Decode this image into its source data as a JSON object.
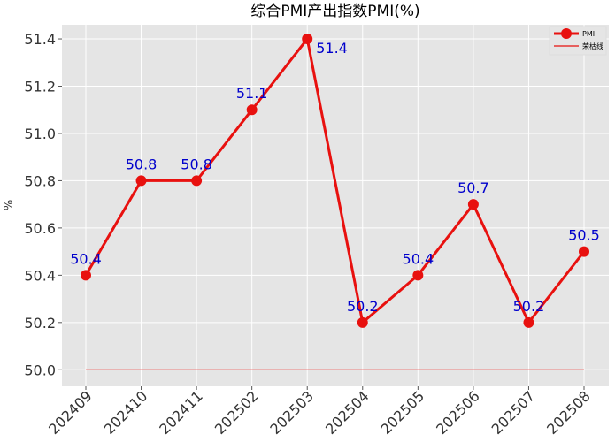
{
  "chart_data": {
    "type": "line",
    "title": "综合PMI产出指数PMI(%)",
    "xlabel": "",
    "ylabel": "%",
    "categories": [
      "202409",
      "202410",
      "202411",
      "202502",
      "202503",
      "202504",
      "202505",
      "202506",
      "202507",
      "202508"
    ],
    "series": [
      {
        "name": "PMI",
        "values": [
          50.4,
          50.8,
          50.8,
          51.1,
          51.4,
          50.2,
          50.4,
          50.7,
          50.2,
          50.5
        ],
        "color": "#e8110f",
        "marker": "circle"
      },
      {
        "name": "荣枯线",
        "values": [
          50.0,
          50.0,
          50.0,
          50.0,
          50.0,
          50.0,
          50.0,
          50.0,
          50.0,
          50.0
        ],
        "color": "#e8110f"
      }
    ],
    "data_labels": [
      "50.4",
      "50.8",
      "50.8",
      "51.1",
      "51.4",
      "50.2",
      "50.4",
      "50.7",
      "50.2",
      "50.5"
    ],
    "data_label_color": "#0000cc",
    "yticks": [
      "50.0",
      "50.2",
      "50.4",
      "50.6",
      "50.8",
      "51.0",
      "51.2",
      "51.4"
    ],
    "ylim": [
      49.93,
      51.46
    ],
    "grid": true,
    "background": "#e5e5e5",
    "legend": "top-right"
  }
}
